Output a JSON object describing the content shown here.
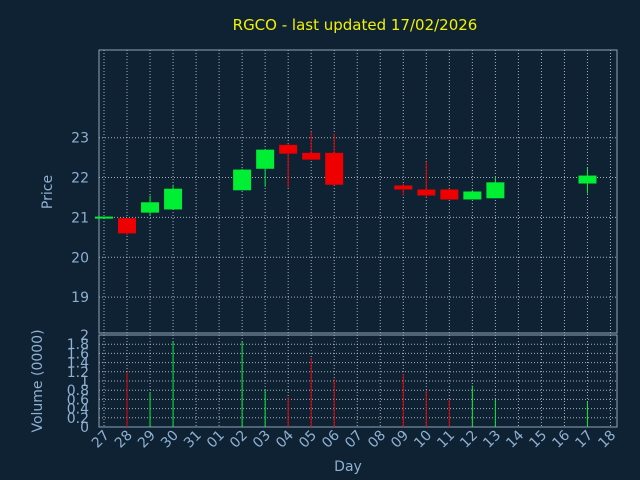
{
  "chart_data": {
    "type": "candlestick",
    "title": "RGCO - last updated 17/02/2026",
    "xlabel": "Day",
    "price_panel": {
      "ylabel": "Price",
      "ylim": [
        18.1,
        25.2
      ],
      "yticks": [
        19,
        20,
        21,
        22,
        23
      ]
    },
    "volume_panel": {
      "ylabel": "Volume (0000)",
      "ylim": [
        0,
        2
      ],
      "yticks": [
        0,
        0.2,
        0.4,
        0.6,
        0.8,
        1.0,
        1.2,
        1.4,
        1.6,
        1.8,
        2
      ]
    },
    "day_labels": [
      "27",
      "28",
      "29",
      "30",
      "31",
      "01",
      "02",
      "03",
      "04",
      "05",
      "06",
      "07",
      "08",
      "09",
      "10",
      "11",
      "12",
      "13",
      "14",
      "15",
      "16",
      "17",
      "18"
    ],
    "candles": [
      {
        "day": "27",
        "open": 21.02,
        "high": 21.02,
        "low": 21.02,
        "close": 21.02,
        "volume": 0.0,
        "direction": "up"
      },
      {
        "day": "28",
        "open": 20.98,
        "high": 20.98,
        "low": 20.55,
        "close": 20.6,
        "volume": 1.2,
        "direction": "down"
      },
      {
        "day": "29",
        "open": 21.12,
        "high": 21.55,
        "low": 21.05,
        "close": 21.38,
        "volume": 0.75,
        "direction": "up"
      },
      {
        "day": "30",
        "open": 21.2,
        "high": 21.82,
        "low": 21.2,
        "close": 21.72,
        "volume": 1.85,
        "direction": "up"
      },
      {
        "day": "02",
        "open": 21.68,
        "high": 22.22,
        "low": 21.68,
        "close": 22.2,
        "volume": 1.85,
        "direction": "up"
      },
      {
        "day": "03",
        "open": 22.22,
        "high": 22.72,
        "low": 21.77,
        "close": 22.7,
        "volume": 0.8,
        "direction": "up"
      },
      {
        "day": "04",
        "open": 22.82,
        "high": 22.85,
        "low": 21.75,
        "close": 22.6,
        "volume": 0.65,
        "direction": "down"
      },
      {
        "day": "05",
        "open": 22.62,
        "high": 23.15,
        "low": 22.45,
        "close": 22.45,
        "volume": 1.5,
        "direction": "down"
      },
      {
        "day": "06",
        "open": 22.62,
        "high": 23.1,
        "low": 21.8,
        "close": 21.82,
        "volume": 1.05,
        "direction": "down"
      },
      {
        "day": "09",
        "open": 21.8,
        "high": 21.85,
        "low": 21.55,
        "close": 21.7,
        "volume": 1.15,
        "direction": "down"
      },
      {
        "day": "10",
        "open": 21.7,
        "high": 22.4,
        "low": 21.5,
        "close": 21.55,
        "volume": 0.8,
        "direction": "down"
      },
      {
        "day": "11",
        "open": 21.7,
        "high": 21.72,
        "low": 21.45,
        "close": 21.45,
        "volume": 0.6,
        "direction": "down"
      },
      {
        "day": "12",
        "open": 21.45,
        "high": 21.68,
        "low": 21.45,
        "close": 21.65,
        "volume": 0.9,
        "direction": "up"
      },
      {
        "day": "13",
        "open": 21.48,
        "high": 22.0,
        "low": 21.48,
        "close": 21.88,
        "volume": 0.6,
        "direction": "up"
      },
      {
        "day": "17",
        "open": 21.85,
        "high": 22.25,
        "low": 21.6,
        "close": 22.05,
        "volume": 0.55,
        "direction": "up"
      }
    ],
    "colors": {
      "background": "#0f2234",
      "up": "#00ee33",
      "down": "#ee0000",
      "title": "#f2f200",
      "axis_text": "#8fb0cf",
      "grid": "#d8e0e8"
    },
    "grid": true
  }
}
